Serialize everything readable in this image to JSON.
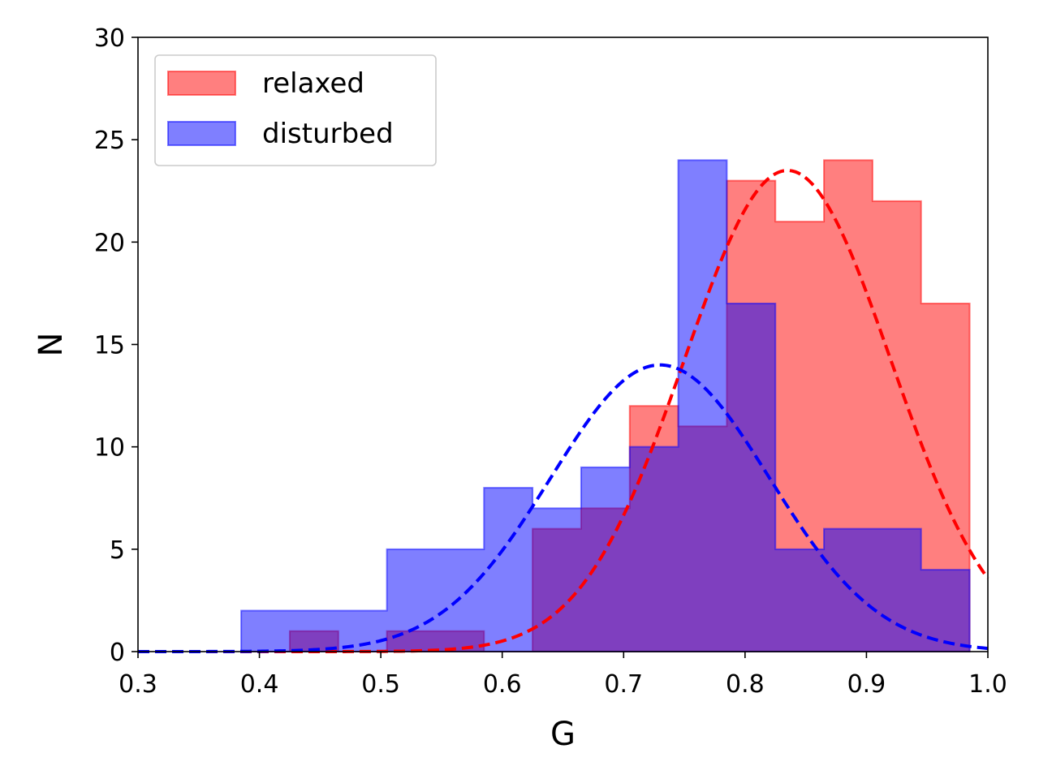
{
  "chart_data": {
    "type": "histogram",
    "title": "",
    "xlabel": "G",
    "ylabel": "N",
    "xlim": [
      0.3,
      1.0
    ],
    "ylim": [
      0,
      30
    ],
    "xticks": [
      "0.3",
      "0.4",
      "0.5",
      "0.6",
      "0.7",
      "0.8",
      "0.9",
      "1.0"
    ],
    "yticks": [
      "0",
      "5",
      "10",
      "15",
      "20",
      "25",
      "30"
    ],
    "grid": false,
    "legend_position": "top-left",
    "bin_edges": [
      0.385,
      0.425,
      0.465,
      0.505,
      0.545,
      0.585,
      0.625,
      0.665,
      0.705,
      0.745,
      0.785,
      0.825,
      0.865,
      0.905,
      0.945,
      0.985
    ],
    "series": [
      {
        "name": "relaxed",
        "color": "#ff0000",
        "counts": [
          0,
          1,
          0,
          1,
          1,
          0,
          6,
          7,
          12,
          11,
          23,
          21,
          24,
          22,
          17
        ],
        "fit": {
          "type": "gaussian",
          "amplitude": 23.5,
          "mean": 0.835,
          "sigma": 0.085
        }
      },
      {
        "name": "disturbed",
        "color": "#0000ff",
        "counts": [
          2,
          2,
          2,
          5,
          5,
          8,
          7,
          9,
          10,
          24,
          17,
          5,
          6,
          6,
          4
        ],
        "fit": {
          "type": "gaussian",
          "amplitude": 14,
          "mean": 0.73,
          "sigma": 0.09
        }
      }
    ]
  }
}
